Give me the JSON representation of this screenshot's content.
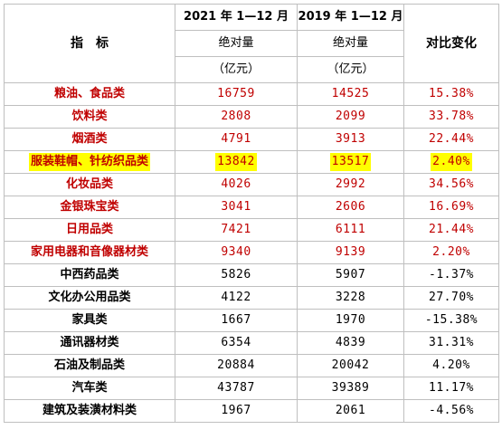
{
  "header": {
    "col_index_label": "指　标",
    "col_2021_title": "2021 年 1—12 月",
    "col_2019_title": "2019 年 1—12 月",
    "abs_label": "绝对量",
    "unit_label": "（亿元）",
    "compare_label": "对比变化"
  },
  "rows": [
    {
      "name": "粮油、食品类",
      "v2021": "16759",
      "v2019": "14525",
      "change": "15.38%",
      "red": true,
      "highlight": false
    },
    {
      "name": "饮料类",
      "v2021": "2808",
      "v2019": "2099",
      "change": "33.78%",
      "red": true,
      "highlight": false
    },
    {
      "name": "烟酒类",
      "v2021": "4791",
      "v2019": "3913",
      "change": "22.44%",
      "red": true,
      "highlight": false
    },
    {
      "name": "服装鞋帽、针纺织品类",
      "v2021": "13842",
      "v2019": "13517",
      "change": "2.40%",
      "red": true,
      "highlight": true
    },
    {
      "name": "化妆品类",
      "v2021": "4026",
      "v2019": "2992",
      "change": "34.56%",
      "red": true,
      "highlight": false
    },
    {
      "name": "金银珠宝类",
      "v2021": "3041",
      "v2019": "2606",
      "change": "16.69%",
      "red": true,
      "highlight": false
    },
    {
      "name": "日用品类",
      "v2021": "7421",
      "v2019": "6111",
      "change": "21.44%",
      "red": true,
      "highlight": false
    },
    {
      "name": "家用电器和音像器材类",
      "v2021": "9340",
      "v2019": "9139",
      "change": "2.20%",
      "red": true,
      "highlight": false
    },
    {
      "name": "中西药品类",
      "v2021": "5826",
      "v2019": "5907",
      "change": "-1.37%",
      "red": false,
      "highlight": false
    },
    {
      "name": "文化办公用品类",
      "v2021": "4122",
      "v2019": "3228",
      "change": "27.70%",
      "red": false,
      "highlight": false
    },
    {
      "name": "家具类",
      "v2021": "1667",
      "v2019": "1970",
      "change": "-15.38%",
      "red": false,
      "highlight": false
    },
    {
      "name": "通讯器材类",
      "v2021": "6354",
      "v2019": "4839",
      "change": "31.31%",
      "red": false,
      "highlight": false
    },
    {
      "name": "石油及制品类",
      "v2021": "20884",
      "v2019": "20042",
      "change": "4.20%",
      "red": false,
      "highlight": false
    },
    {
      "name": "汽车类",
      "v2021": "43787",
      "v2019": "39389",
      "change": "11.17%",
      "red": false,
      "highlight": false
    },
    {
      "name": "建筑及装潢材料类",
      "v2021": "1967",
      "v2019": "2061",
      "change": "-4.56%",
      "red": false,
      "highlight": false
    }
  ],
  "colors": {
    "accent_red": "#c00000",
    "highlight": "#ffff00",
    "grid": "#bfbfbf"
  }
}
